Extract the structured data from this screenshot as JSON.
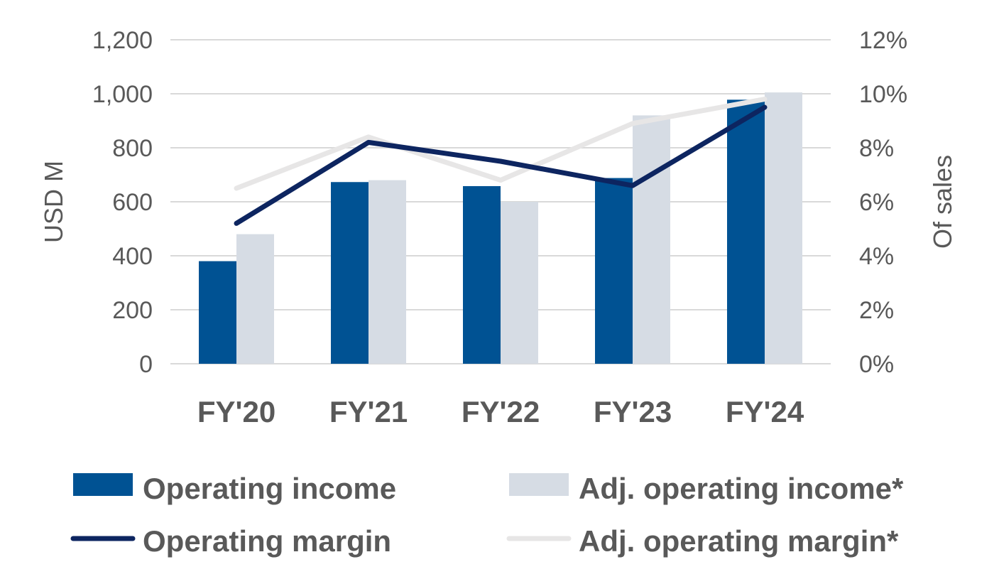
{
  "chart_data": {
    "type": "bar",
    "categories": [
      "FY'20",
      "FY'21",
      "FY'22",
      "FY'23",
      "FY'24"
    ],
    "series": [
      {
        "name": "Operating income",
        "kind": "bar",
        "axis": "left",
        "color": "#005293",
        "values": [
          380,
          673,
          658,
          688,
          978
        ]
      },
      {
        "name": "Adj. operating income*",
        "kind": "bar",
        "axis": "left",
        "color": "#D6DCE4",
        "values": [
          480,
          680,
          600,
          920,
          1005
        ]
      },
      {
        "name": "Operating margin",
        "kind": "line",
        "axis": "right",
        "color": "#0D2560",
        "values": [
          5.2,
          8.2,
          7.5,
          6.6,
          9.5
        ]
      },
      {
        "name": "Adj. operating margin*",
        "kind": "line",
        "axis": "right",
        "color": "#E7E6E6",
        "values": [
          6.5,
          8.4,
          6.8,
          8.9,
          9.8
        ]
      }
    ],
    "ylabel": "USD M",
    "y2label": "Of sales",
    "ylim": [
      0,
      1200
    ],
    "y2lim": [
      0,
      12
    ],
    "yticks": [
      "0",
      "200",
      "400",
      "600",
      "800",
      "1,000",
      "1,200"
    ],
    "y2ticks": [
      "0%",
      "2%",
      "4%",
      "6%",
      "8%",
      "10%",
      "12%"
    ],
    "grid": true,
    "legend_position": "bottom"
  }
}
